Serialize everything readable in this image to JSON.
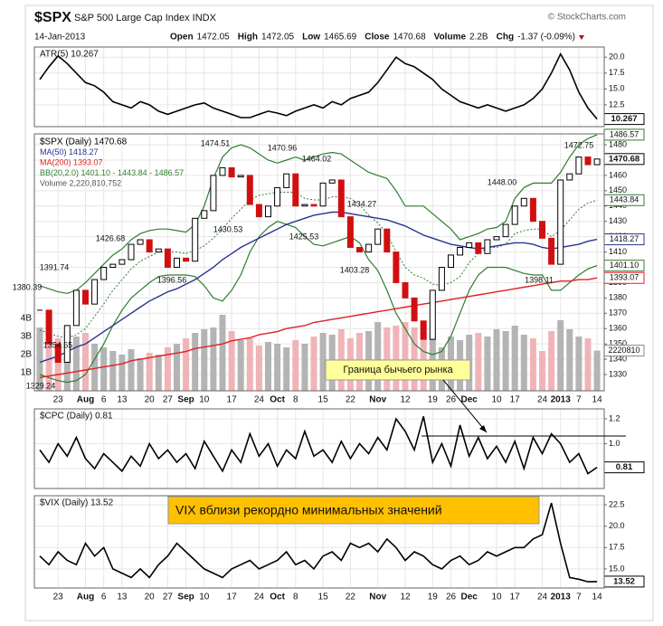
{
  "header": {
    "symbol": "$SPX",
    "name": "S&P 500 Large Cap Index INDX",
    "credit": "© StockCharts.com",
    "date": "14-Jan-2013",
    "quote": [
      {
        "label": "Open",
        "value": "1472.05"
      },
      {
        "label": "High",
        "value": "1472.05"
      },
      {
        "label": "Low",
        "value": "1465.69"
      },
      {
        "label": "Close",
        "value": "1470.68"
      },
      {
        "label": "Volume",
        "value": "2.2B"
      },
      {
        "label": "Chg",
        "value": "-1.37 (-0.09%)"
      }
    ]
  },
  "annotations": {
    "bull_market_boundary": "Граница бычьего рынка",
    "vix_note": "VIX вблизи рекордно минимальных значений"
  },
  "chart_data": [
    {
      "type": "line",
      "tag": "10.267",
      "ylim": [
        9.07,
        21.6
      ],
      "yticks": [
        {
          "value": 20,
          "label": "20.0"
        },
        17.5,
        {
          "value": 15,
          "label": "15.0"
        },
        12.5
      ],
      "series": [
        {
          "name": "ATR(5) 10.267",
          "color": "#000000",
          "values": [
            16.5,
            18.5,
            20.2,
            19.0,
            17.5,
            16.0,
            15.5,
            14.5,
            13.0,
            12.5,
            12.0,
            13.0,
            12.5,
            11.5,
            11.0,
            11.5,
            12.0,
            12.5,
            12.8,
            12.0,
            11.5,
            11.0,
            10.5,
            10.5,
            11.0,
            11.5,
            11.2,
            10.8,
            11.5,
            12.0,
            12.5,
            12.0,
            13.0,
            12.5,
            13.5,
            14.0,
            14.5,
            16.0,
            18.0,
            20.0,
            19.0,
            18.5,
            17.5,
            16.5,
            15.0,
            14.0,
            13.0,
            12.5,
            12.0,
            12.5,
            12.0,
            11.5,
            12.0,
            12.5,
            13.5,
            15.0,
            17.5,
            20.5,
            18.0,
            14.5,
            12.0,
            10.267
          ]
        }
      ]
    },
    {
      "type": "candlestick",
      "legend": "$SPX (Daily) 1470.68",
      "categories": [
        null,
        null,
        "23",
        null,
        null,
        "Aug",
        null,
        "6",
        null,
        "13",
        null,
        null,
        "20",
        null,
        "27",
        null,
        "Sep",
        null,
        "10",
        null,
        null,
        "17",
        null,
        null,
        "24",
        null,
        "Oct",
        null,
        "8",
        null,
        null,
        "15",
        null,
        null,
        "22",
        null,
        null,
        "Nov",
        null,
        null,
        "12",
        null,
        null,
        "19",
        null,
        "26",
        null,
        "Dec",
        null,
        null,
        "10",
        null,
        "17",
        null,
        null,
        "24",
        null,
        "2013",
        null,
        "7",
        null,
        "14"
      ],
      "close": [
        1372,
        1350,
        1338,
        1362,
        1385,
        1376,
        1392,
        1400,
        1402,
        1405,
        1415,
        1418,
        1410,
        1412,
        1400,
        1406,
        1404,
        1432,
        1437,
        1460,
        1465,
        1459,
        1460,
        1441,
        1433,
        1440,
        1452,
        1461,
        1440,
        1441,
        1440,
        1455,
        1457,
        1433,
        1413,
        1410,
        1415,
        1425,
        1410,
        1390,
        1380,
        1365,
        1353,
        1385,
        1400,
        1408,
        1413,
        1416,
        1409,
        1418,
        1420,
        1428,
        1440,
        1445,
        1430,
        1419,
        1402,
        1457,
        1461,
        1472,
        1467,
        1470.68
      ],
      "up_color": "#000000",
      "down_color": "#d01010",
      "ylim": [
        1319.4,
        1487.1
      ],
      "yticks": [
        1330,
        1340,
        1350,
        1360,
        1370,
        1380,
        1390,
        1400,
        1410,
        1420,
        1430,
        1440,
        1450,
        1460,
        1470,
        1480
      ],
      "series": [
        {
          "name": "MA(50) 1418.27",
          "color": "#28358f",
          "values": [
            1338,
            1340,
            1342,
            1345,
            1348,
            1350,
            1354,
            1358,
            1362,
            1366,
            1370,
            1374,
            1378,
            1381,
            1384,
            1386,
            1389,
            1392,
            1396,
            1400,
            1405,
            1409,
            1413,
            1416,
            1419,
            1422,
            1425,
            1428,
            1430,
            1432,
            1434,
            1435,
            1436,
            1436,
            1435,
            1434,
            1433,
            1432,
            1431,
            1429,
            1427,
            1424,
            1421,
            1419,
            1417,
            1415,
            1414,
            1413,
            1412,
            1413,
            1414,
            1415,
            1416,
            1416,
            1415,
            1413,
            1412,
            1413,
            1414,
            1415,
            1417,
            1418.27
          ]
        },
        {
          "name": "MA(200) 1393.07",
          "color": "#e02020",
          "values": [
            1328,
            1329,
            1330,
            1331,
            1332,
            1333,
            1334,
            1335,
            1336,
            1337,
            1339,
            1340,
            1341,
            1342,
            1343,
            1344,
            1345,
            1347,
            1348,
            1349,
            1350,
            1352,
            1353,
            1354,
            1356,
            1357,
            1358,
            1360,
            1361,
            1362,
            1364,
            1365,
            1366,
            1367,
            1368,
            1369,
            1370,
            1371,
            1372,
            1373,
            1374,
            1375,
            1376,
            1377,
            1378,
            1379,
            1380,
            1381,
            1382,
            1383,
            1384,
            1385,
            1386,
            1387,
            1388,
            1389,
            1390,
            1391,
            1391,
            1392,
            1392,
            1393.07
          ]
        }
      ],
      "bands": {
        "name": "BB(20,2.0) 1401.10 - 1443.84 - 1486.57",
        "color": "#2e7d2e",
        "upper": [
          1388,
          1386,
          1384,
          1383,
          1385,
          1390,
          1396,
          1402,
          1408,
          1412,
          1418,
          1422,
          1424,
          1425,
          1425,
          1424,
          1423,
          1428,
          1440,
          1458,
          1472,
          1478,
          1480,
          1478,
          1474,
          1470,
          1468,
          1470,
          1472,
          1470,
          1472,
          1474,
          1475,
          1474,
          1470,
          1466,
          1462,
          1460,
          1458,
          1450,
          1440,
          1440,
          1440,
          1435,
          1430,
          1425,
          1418,
          1420,
          1422,
          1425,
          1426,
          1430,
          1445,
          1452,
          1455,
          1455,
          1455,
          1462,
          1472,
          1480,
          1484,
          1486.57
        ],
        "mid": [
          1359,
          1357,
          1355,
          1354,
          1356,
          1360,
          1368,
          1376,
          1385,
          1392,
          1399,
          1404,
          1407,
          1410,
          1410,
          1410,
          1409,
          1411,
          1414,
          1419,
          1425,
          1432,
          1438,
          1444,
          1447,
          1448,
          1449,
          1449,
          1449,
          1445,
          1444,
          1444,
          1446,
          1446,
          1445,
          1441,
          1434,
          1429,
          1422,
          1410,
          1400,
          1395,
          1393,
          1389,
          1388,
          1390,
          1394,
          1403,
          1409,
          1413,
          1413,
          1415,
          1422,
          1424,
          1425,
          1425,
          1420,
          1424,
          1431,
          1438,
          1442,
          1443.84
        ],
        "lower": [
          1330,
          1328,
          1326,
          1325,
          1326,
          1330,
          1340,
          1350,
          1362,
          1372,
          1380,
          1385,
          1390,
          1394,
          1395,
          1395,
          1395,
          1394,
          1388,
          1380,
          1378,
          1385,
          1395,
          1410,
          1420,
          1426,
          1430,
          1428,
          1426,
          1420,
          1415,
          1414,
          1416,
          1418,
          1420,
          1416,
          1405,
          1398,
          1385,
          1370,
          1360,
          1350,
          1345,
          1343,
          1345,
          1355,
          1370,
          1385,
          1395,
          1400,
          1400,
          1400,
          1398,
          1396,
          1395,
          1395,
          1385,
          1385,
          1390,
          1395,
          1399,
          1401.1
        ]
      },
      "volume": {
        "name": "Volume 2,220,810,752",
        "up_color": "#b4b4b4",
        "down_color": "#f0b4b8",
        "ylim": [
          0,
          14200000000
        ],
        "yticks": [
          {
            "value": 1000000000,
            "label": "1B"
          },
          {
            "value": 2000000000,
            "label": "2B"
          },
          {
            "value": 3000000000,
            "label": "3B"
          },
          {
            "value": 4000000000,
            "label": "4B"
          }
        ],
        "values": [
          3500000000.0,
          3800000000.0,
          2900000000.0,
          3300000000.0,
          3000000000.0,
          3200000000.0,
          2600000000.0,
          2400000000.0,
          2200000000.0,
          2000000000.0,
          2300000000.0,
          1800000000.0,
          2100000000.0,
          2000000000.0,
          2400000000.0,
          2600000000.0,
          2900000000.0,
          3200000000.0,
          3400000000.0,
          3500000000.0,
          4200000000.0,
          3300000000.0,
          2800000000.0,
          2900000000.0,
          2500000000.0,
          2700000000.0,
          2600000000.0,
          2400000000.0,
          2800000000.0,
          2600000000.0,
          3000000000.0,
          3200000000.0,
          3100000000.0,
          3400000000.0,
          2900000000.0,
          3200000000.0,
          3300000000.0,
          3800000000.0,
          3500000000.0,
          3600000000.0,
          3800000000.0,
          3500000000.0,
          3700000000.0,
          3200000000.0,
          2400000000.0,
          3000000000.0,
          2800000000.0,
          3100000000.0,
          3200000000.0,
          3000000000.0,
          3400000000.0,
          3300000000.0,
          3600000000.0,
          3100000000.0,
          2900000000.0,
          2200000000.0,
          3300000000.0,
          3900000000.0,
          3400000000.0,
          3000000000.0,
          2900000000.0,
          2220810752
        ],
        "tag": "2220810"
      },
      "tags": [
        "1486.57",
        "1470.68",
        "1443.84",
        "1418.27",
        "1401.10",
        "1393.07"
      ],
      "price_labels": [
        "1380.39",
        "1329.24",
        "1391.74",
        "1354.65",
        "1426.68",
        "1396.56",
        "1474.51",
        "1430.53",
        "1470.96",
        "1425.53",
        "1464.02",
        "1434.27",
        "1403.28",
        "1448.00",
        "1398.11",
        "1472.75"
      ]
    },
    {
      "type": "line",
      "tag": "0.81",
      "ylim": [
        0.64,
        1.28
      ],
      "yticks": [
        1.2,
        {
          "value": 1,
          "label": "1.0"
        },
        0.8
      ],
      "series": [
        {
          "name": "$CPC (Daily) 0.81",
          "color": "#000000",
          "values": [
            0.95,
            0.85,
            1.0,
            0.9,
            1.05,
            0.88,
            0.8,
            0.92,
            0.85,
            0.78,
            0.9,
            0.82,
            1.0,
            0.88,
            0.95,
            0.85,
            0.92,
            0.8,
            1.02,
            0.9,
            0.78,
            0.95,
            0.85,
            1.08,
            0.9,
            1.0,
            0.82,
            0.95,
            0.88,
            1.1,
            0.9,
            0.95,
            0.85,
            1.02,
            0.88,
            1.0,
            0.92,
            1.05,
            0.95,
            1.2,
            1.1,
            0.95,
            1.22,
            0.85,
            1.0,
            0.82,
            1.15,
            0.9,
            1.05,
            0.88,
            0.98,
            0.85,
            1.02,
            0.8,
            1.05,
            0.92,
            1.08,
            1.0,
            0.85,
            0.92,
            0.76,
            0.81
          ]
        }
      ]
    },
    {
      "type": "line",
      "tag": "13.52",
      "ylim": [
        12.77,
        23.56
      ],
      "yticks": [
        22.5,
        {
          "value": 20,
          "label": "20.0"
        },
        17.5,
        {
          "value": 15,
          "label": "15.0"
        }
      ],
      "categories": [
        null,
        null,
        "23",
        null,
        null,
        "Aug",
        null,
        "6",
        null,
        "13",
        null,
        null,
        "20",
        null,
        "27",
        null,
        "Sep",
        null,
        "10",
        null,
        null,
        "17",
        null,
        null,
        "24",
        null,
        "Oct",
        null,
        "8",
        null,
        null,
        "15",
        null,
        null,
        "22",
        null,
        null,
        "Nov",
        null,
        null,
        "12",
        null,
        null,
        "19",
        null,
        "26",
        null,
        "Dec",
        null,
        null,
        "10",
        null,
        "17",
        null,
        null,
        "24",
        null,
        "2013",
        null,
        "7",
        null,
        "14"
      ],
      "series": [
        {
          "name": "$VIX (Daily) 13.52",
          "color": "#000000",
          "values": [
            16.5,
            15.5,
            17,
            16,
            15.5,
            18,
            16.5,
            17.5,
            15,
            14.5,
            14,
            15,
            14,
            15.5,
            16.5,
            18,
            17,
            16,
            15,
            14.5,
            14,
            15,
            15.5,
            16,
            15,
            15.5,
            16,
            17,
            15.5,
            16,
            15,
            16.5,
            17,
            16,
            18,
            17.5,
            18,
            17,
            18.5,
            17.5,
            16,
            17,
            16.5,
            15.5,
            15,
            16,
            16.5,
            15.5,
            16,
            17,
            16.5,
            17,
            17.5,
            17.5,
            18.5,
            19,
            22.7,
            18,
            14,
            13.8,
            13.5,
            13.52
          ]
        }
      ]
    }
  ]
}
